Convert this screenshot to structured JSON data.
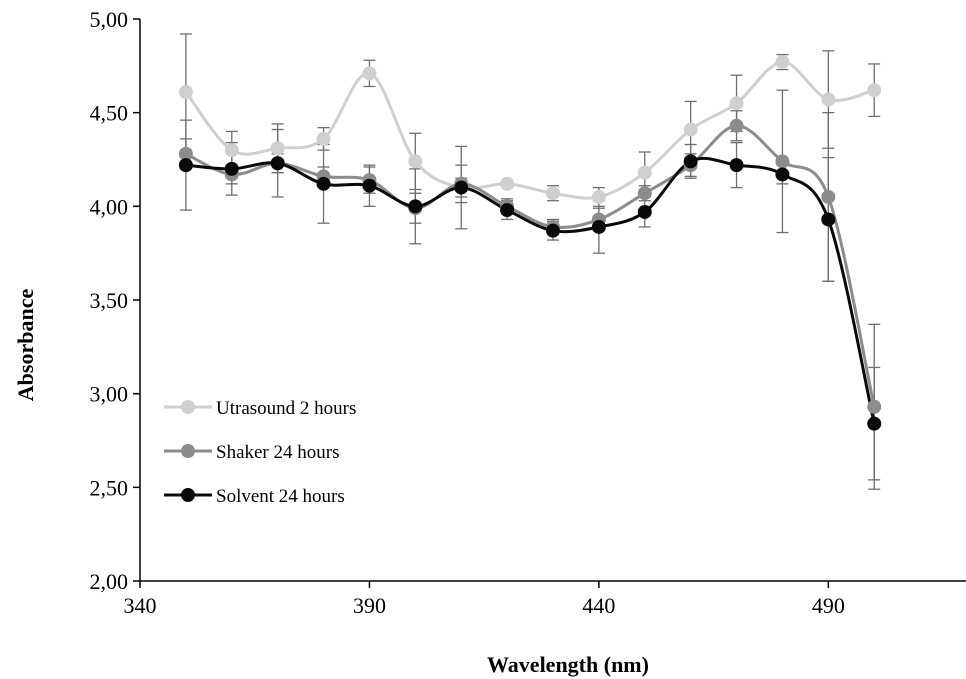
{
  "chart_data": {
    "type": "line",
    "title": "",
    "xlabel": "Wavelength (nm)",
    "ylabel": "Absorbance",
    "xlim": [
      340,
      520
    ],
    "ylim": [
      2.0,
      5.0
    ],
    "x_ticks": [
      340,
      390,
      440,
      490
    ],
    "x_tick_labels": [
      "340",
      "390",
      "440",
      "490"
    ],
    "y_ticks": [
      2.0,
      2.5,
      3.0,
      3.5,
      4.0,
      4.5,
      5.0
    ],
    "y_tick_labels": [
      "2,00",
      "2,50",
      "3,00",
      "3,50",
      "4,00",
      "4,50",
      "5,00"
    ],
    "grid": false,
    "legend_position": "left",
    "x": [
      350,
      360,
      370,
      380,
      390,
      400,
      410,
      420,
      430,
      440,
      450,
      460,
      470,
      480,
      490,
      500
    ],
    "series": [
      {
        "name": "Utrasound 2 hours",
        "color": "#cfcfcf",
        "values": [
          4.61,
          4.3,
          4.31,
          4.36,
          4.71,
          4.24,
          4.1,
          4.12,
          4.07,
          4.05,
          4.18,
          4.41,
          4.55,
          4.77,
          4.57,
          4.62
        ],
        "errors": [
          0.31,
          0.1,
          0.13,
          0.06,
          0.07,
          0.15,
          0.05,
          0.02,
          0.04,
          0.05,
          0.11,
          0.15,
          0.15,
          0.04,
          0.26,
          0.14
        ]
      },
      {
        "name": "Shaker 24 hours",
        "color": "#8c8c8c",
        "values": [
          4.28,
          4.17,
          4.23,
          4.16,
          4.14,
          3.99,
          4.12,
          4.0,
          3.89,
          3.93,
          4.07,
          4.22,
          4.43,
          4.24,
          4.05,
          2.93
        ],
        "errors": [
          0.08,
          0.05,
          0.05,
          0.05,
          0.07,
          0.08,
          0.1,
          0.04,
          0.04,
          0.06,
          0.04,
          0.06,
          0.08,
          0.38,
          0.45,
          0.44
        ]
      },
      {
        "name": "Solvent 24 hours",
        "color": "#0a0a0a",
        "values": [
          4.22,
          4.2,
          4.23,
          4.12,
          4.11,
          4.0,
          4.1,
          3.98,
          3.87,
          3.89,
          3.97,
          4.24,
          4.22,
          4.17,
          3.93,
          2.84
        ],
        "errors": [
          0.24,
          0.14,
          0.18,
          0.21,
          0.11,
          0.2,
          0.22,
          0.05,
          0.05,
          0.14,
          0.08,
          0.09,
          0.12,
          0.05,
          0.33,
          0.3
        ]
      }
    ]
  }
}
